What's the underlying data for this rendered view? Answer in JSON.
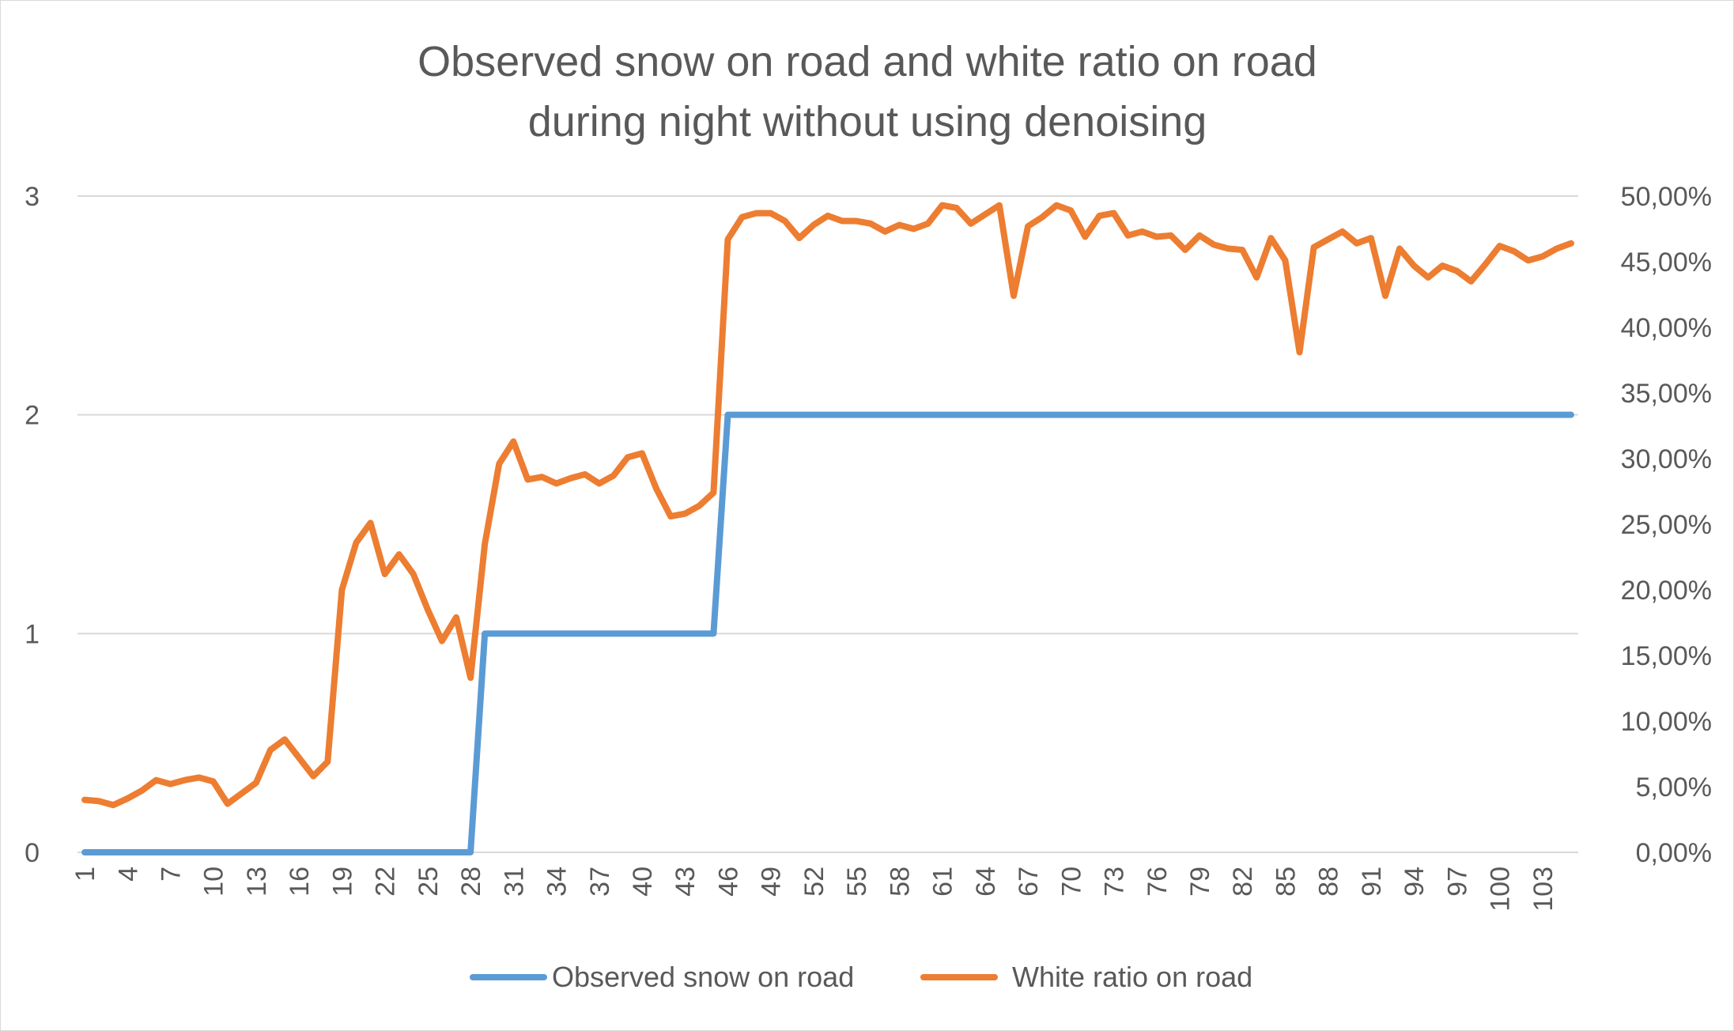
{
  "chart_data": {
    "type": "line",
    "title_lines": [
      "Observed snow on road and white ratio on road",
      "during night without using denoising"
    ],
    "x": [
      1,
      2,
      3,
      4,
      5,
      6,
      7,
      8,
      9,
      10,
      11,
      12,
      13,
      14,
      15,
      16,
      17,
      18,
      19,
      20,
      21,
      22,
      23,
      24,
      25,
      26,
      27,
      28,
      29,
      30,
      31,
      32,
      33,
      34,
      35,
      36,
      37,
      38,
      39,
      40,
      41,
      42,
      43,
      44,
      45,
      46,
      47,
      48,
      49,
      50,
      51,
      52,
      53,
      54,
      55,
      56,
      57,
      58,
      59,
      60,
      61,
      62,
      63,
      64,
      65,
      66,
      67,
      68,
      69,
      70,
      71,
      72,
      73,
      74,
      75,
      76,
      77,
      78,
      79,
      80,
      81,
      82,
      83,
      84,
      85,
      86,
      87,
      88,
      89,
      90,
      91,
      92,
      93,
      94,
      95,
      96,
      97,
      98,
      99,
      100,
      101,
      102,
      103,
      104,
      105
    ],
    "x_tick_labels": [
      "1",
      "4",
      "7",
      "10",
      "13",
      "16",
      "19",
      "22",
      "25",
      "28",
      "31",
      "34",
      "37",
      "40",
      "43",
      "46",
      "49",
      "52",
      "55",
      "58",
      "61",
      "64",
      "67",
      "70",
      "73",
      "76",
      "79",
      "82",
      "85",
      "88",
      "91",
      "94",
      "97",
      "100",
      "103"
    ],
    "y_left": {
      "min": 0,
      "max": 3,
      "ticks": [
        "0",
        "1",
        "2",
        "3"
      ]
    },
    "y_right": {
      "min": 0,
      "max": 50,
      "ticks": [
        "0,00%",
        "5,00%",
        "10,00%",
        "15,00%",
        "20,00%",
        "25,00%",
        "30,00%",
        "35,00%",
        "40,00%",
        "45,00%",
        "50,00%"
      ]
    },
    "grid": true,
    "legend_position": "bottom",
    "series": [
      {
        "name": "Observed snow on road",
        "axis": "left",
        "color": "#5b9bd5",
        "values": [
          0,
          0,
          0,
          0,
          0,
          0,
          0,
          0,
          0,
          0,
          0,
          0,
          0,
          0,
          0,
          0,
          0,
          0,
          0,
          0,
          0,
          0,
          0,
          0,
          0,
          0,
          0,
          0,
          1,
          1,
          1,
          1,
          1,
          1,
          1,
          1,
          1,
          1,
          1,
          1,
          1,
          1,
          1,
          1,
          1,
          2,
          2,
          2,
          2,
          2,
          2,
          2,
          2,
          2,
          2,
          2,
          2,
          2,
          2,
          2,
          2,
          2,
          2,
          2,
          2,
          2,
          2,
          2,
          2,
          2,
          2,
          2,
          2,
          2,
          2,
          2,
          2,
          2,
          2,
          2,
          2,
          2,
          2,
          2,
          2,
          2,
          2,
          2,
          2,
          2,
          2,
          2,
          2,
          2,
          2,
          2,
          2,
          2,
          2,
          2,
          2,
          2,
          2,
          2,
          2
        ]
      },
      {
        "name": "White ratio on road",
        "axis": "right",
        "color": "#ed7d31",
        "values": [
          4.0,
          3.9,
          3.6,
          4.1,
          4.7,
          5.5,
          5.2,
          5.5,
          5.7,
          5.4,
          3.7,
          4.5,
          5.3,
          7.8,
          8.6,
          7.2,
          5.8,
          6.9,
          20.0,
          23.6,
          25.1,
          21.2,
          22.7,
          21.2,
          18.5,
          16.1,
          17.9,
          13.3,
          23.5,
          29.6,
          31.3,
          28.4,
          28.6,
          28.1,
          28.5,
          28.8,
          28.1,
          28.7,
          30.1,
          30.4,
          27.7,
          25.6,
          25.8,
          26.4,
          27.4,
          46.7,
          48.4,
          48.7,
          48.7,
          48.1,
          46.8,
          47.8,
          48.5,
          48.1,
          48.1,
          47.9,
          47.3,
          47.8,
          47.5,
          47.9,
          49.3,
          49.1,
          47.9,
          48.6,
          49.3,
          42.4,
          47.7,
          48.4,
          49.3,
          48.9,
          46.9,
          48.5,
          48.7,
          47.0,
          47.3,
          46.9,
          47.0,
          45.9,
          47.0,
          46.3,
          46.0,
          45.9,
          43.8,
          46.8,
          45.1,
          38.1,
          46.1,
          46.7,
          47.3,
          46.4,
          46.8,
          42.4,
          46.0,
          44.7,
          43.8,
          44.7,
          44.3,
          43.5,
          44.8,
          46.2,
          45.8,
          45.1,
          45.4,
          46.0,
          46.4
        ]
      }
    ]
  }
}
